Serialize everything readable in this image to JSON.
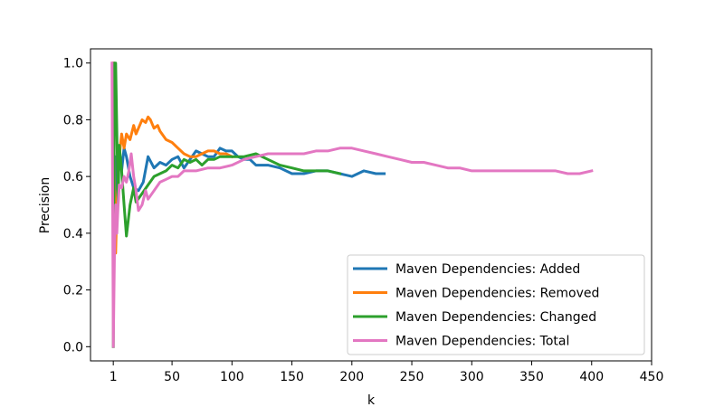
{
  "chart_data": {
    "type": "line",
    "title": "",
    "xlabel": "k",
    "ylabel": "Precision",
    "xlim": [
      -18,
      450
    ],
    "ylim": [
      -0.05,
      1.05
    ],
    "x_ticks": [
      1,
      50,
      100,
      150,
      200,
      250,
      300,
      350,
      400,
      450
    ],
    "x_tick_labels": [
      "1",
      "50",
      "100",
      "150",
      "200",
      "250",
      "300",
      "350",
      "400",
      "450"
    ],
    "y_ticks": [
      0.0,
      0.2,
      0.4,
      0.6,
      0.8,
      1.0
    ],
    "y_tick_labels": [
      "0.0",
      "0.2",
      "0.4",
      "0.6",
      "0.8",
      "1.0"
    ],
    "grid": false,
    "legend_position": "lower-right",
    "series": [
      {
        "name": "Maven Dependencies: Added",
        "color": "#1f77b4",
        "x": [
          1,
          2,
          3,
          4,
          5,
          6,
          8,
          10,
          12,
          15,
          18,
          22,
          26,
          30,
          35,
          40,
          45,
          50,
          55,
          60,
          65,
          70,
          75,
          80,
          85,
          90,
          95,
          100,
          105,
          110,
          115,
          120,
          125,
          130,
          140,
          150,
          160,
          170,
          180,
          190,
          200,
          210,
          220,
          227
        ],
        "y": [
          1.0,
          0.5,
          0.67,
          0.5,
          0.6,
          0.67,
          0.62,
          0.7,
          0.67,
          0.6,
          0.56,
          0.55,
          0.58,
          0.67,
          0.63,
          0.65,
          0.64,
          0.66,
          0.67,
          0.63,
          0.66,
          0.69,
          0.68,
          0.67,
          0.67,
          0.7,
          0.69,
          0.69,
          0.67,
          0.66,
          0.66,
          0.64,
          0.64,
          0.64,
          0.63,
          0.61,
          0.61,
          0.62,
          0.62,
          0.61,
          0.6,
          0.62,
          0.61,
          0.61
        ]
      },
      {
        "name": "Maven Dependencies: Removed",
        "color": "#ff7f0e",
        "x": [
          1,
          2,
          3,
          4,
          6,
          8,
          10,
          12,
          15,
          18,
          20,
          22,
          25,
          28,
          30,
          32,
          35,
          38,
          40,
          45,
          50,
          55,
          60,
          65,
          70,
          75,
          80,
          85,
          90,
          95,
          100
        ],
        "y": [
          1.0,
          0.5,
          0.33,
          0.5,
          0.67,
          0.75,
          0.7,
          0.75,
          0.73,
          0.78,
          0.75,
          0.77,
          0.8,
          0.79,
          0.81,
          0.8,
          0.77,
          0.78,
          0.76,
          0.73,
          0.72,
          0.7,
          0.68,
          0.67,
          0.67,
          0.68,
          0.69,
          0.69,
          0.68,
          0.68,
          0.67
        ]
      },
      {
        "name": "Maven Dependencies: Changed",
        "color": "#2ca02c",
        "x": [
          1,
          2,
          3,
          5,
          6,
          8,
          10,
          12,
          15,
          18,
          20,
          25,
          30,
          35,
          40,
          45,
          50,
          55,
          60,
          65,
          70,
          75,
          80,
          85,
          90,
          95,
          100,
          110,
          120,
          130,
          140,
          150,
          160,
          170,
          180,
          190
        ],
        "y": [
          0.0,
          1.0,
          1.0,
          0.5,
          0.71,
          0.62,
          0.5,
          0.39,
          0.5,
          0.56,
          0.51,
          0.54,
          0.57,
          0.6,
          0.61,
          0.62,
          0.64,
          0.63,
          0.66,
          0.65,
          0.66,
          0.64,
          0.66,
          0.66,
          0.67,
          0.67,
          0.67,
          0.67,
          0.68,
          0.66,
          0.64,
          0.63,
          0.62,
          0.62,
          0.62,
          0.61
        ]
      },
      {
        "name": "Maven Dependencies: Total",
        "color": "#e377c2",
        "x": [
          0,
          1,
          2,
          3,
          4,
          5,
          6,
          8,
          10,
          12,
          14,
          16,
          18,
          20,
          22,
          25,
          28,
          30,
          35,
          40,
          45,
          50,
          55,
          60,
          70,
          80,
          90,
          100,
          110,
          120,
          130,
          140,
          150,
          160,
          170,
          180,
          190,
          200,
          210,
          220,
          230,
          240,
          250,
          260,
          270,
          280,
          290,
          300,
          310,
          320,
          330,
          340,
          350,
          360,
          370,
          380,
          390,
          400
        ],
        "y": [
          1.0,
          0.0,
          0.33,
          0.5,
          0.4,
          0.5,
          0.57,
          0.56,
          0.6,
          0.58,
          0.62,
          0.68,
          0.6,
          0.55,
          0.48,
          0.5,
          0.55,
          0.52,
          0.55,
          0.58,
          0.59,
          0.6,
          0.6,
          0.62,
          0.62,
          0.63,
          0.63,
          0.64,
          0.66,
          0.67,
          0.68,
          0.68,
          0.68,
          0.68,
          0.69,
          0.69,
          0.7,
          0.7,
          0.69,
          0.68,
          0.67,
          0.66,
          0.65,
          0.65,
          0.64,
          0.63,
          0.63,
          0.62,
          0.62,
          0.62,
          0.62,
          0.62,
          0.62,
          0.62,
          0.62,
          0.61,
          0.61,
          0.62
        ]
      }
    ]
  }
}
